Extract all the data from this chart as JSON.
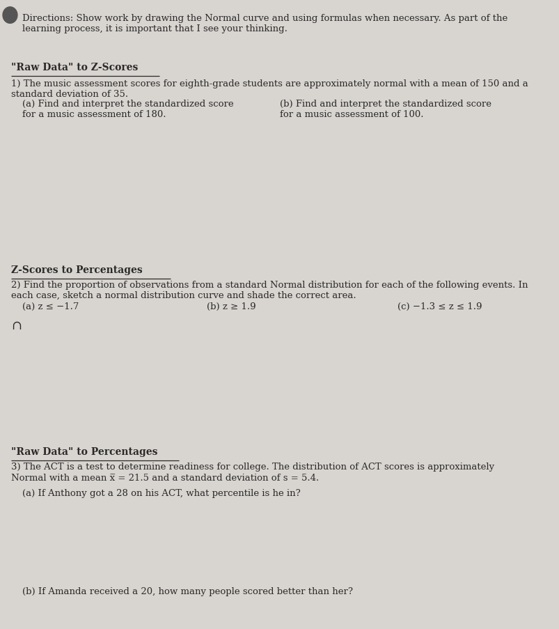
{
  "bg_color": "#d8d4cf",
  "text_color": "#2a2a2a",
  "figsize": [
    8.04,
    9.04
  ],
  "dpi": 100,
  "directions_text": "Directions: Show work by drawing the Normal curve and using formulas when necessary. As part of the\nlearning process, it is important that I see your thinking.",
  "section1_title": "\"Raw Data\" to Z-Scores",
  "section1_body": "1) The music assessment scores for eighth-grade students are approximately normal with a mean of 150 and a\nstandard deviation of 35.",
  "section1a_label": "(a) Find and interpret the standardized score\nfor a music assessment of 180.",
  "section1b_label": "(b) Find and interpret the standardized score\nfor a music assessment of 100.",
  "section2_title": "Z-Scores to Percentages",
  "section2_body": "2) Find the proportion of observations from a standard Normal distribution for each of the following events. In\neach case, sketch a normal distribution curve and shade the correct area.",
  "section2a_label": "(a) z ≤ −1.7",
  "section2b_label": "(b) z ≥ 1.9",
  "section2c_label": "(c) −1.3 ≤ z ≤ 1.9",
  "section3_title": "\"Raw Data\" to Percentages",
  "section3_body1": "3) The ACT is a test to determine readiness for college. The distribution of ACT scores is approximately",
  "section3_body2": "Normal with a mean x̅ = 21.5 and a standard deviation of s = 5.4.",
  "section3a_label": "(a) If Anthony got a 28 on his ACT, what percentile is he in?",
  "section3b_label": "(b) If Amanda received a 20, how many people scored better than her?"
}
